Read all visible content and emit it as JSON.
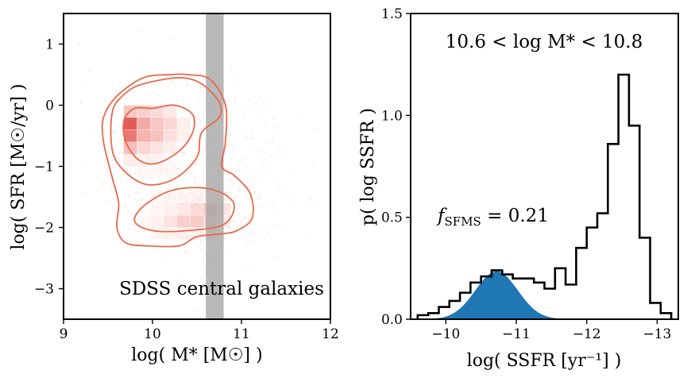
{
  "chart_data": [
    {
      "type": "heatmap",
      "xlabel": "log( M* [M☉] )",
      "ylabel": "log( SFR [M☉/yr] )",
      "xlim": [
        9,
        12
      ],
      "ylim": [
        -3.5,
        1.5
      ],
      "xticks": [
        9,
        10,
        11,
        12
      ],
      "xtick_labels": [
        "9",
        "10",
        "11",
        "12"
      ],
      "yticks": [
        1,
        0,
        -1,
        -2,
        -3
      ],
      "ytick_labels": [
        "1",
        "0",
        "−1",
        "−2",
        "−3"
      ],
      "annotation": "SDSS central galaxies",
      "highlight_band": {
        "x_range": [
          10.6,
          10.8
        ],
        "color": "#a0a0a0"
      },
      "bin_size": {
        "dx": 0.15,
        "dy": 0.2
      },
      "cells": [
        {
          "x": 9.75,
          "y": -0.1,
          "v": 0.4
        },
        {
          "x": 9.9,
          "y": -0.1,
          "v": 0.35
        },
        {
          "x": 10.05,
          "y": -0.1,
          "v": 0.28
        },
        {
          "x": 10.2,
          "y": -0.1,
          "v": 0.18
        },
        {
          "x": 9.75,
          "y": -0.3,
          "v": 0.85
        },
        {
          "x": 9.9,
          "y": -0.3,
          "v": 0.55
        },
        {
          "x": 10.05,
          "y": -0.3,
          "v": 0.4
        },
        {
          "x": 10.2,
          "y": -0.3,
          "v": 0.3
        },
        {
          "x": 10.35,
          "y": -0.3,
          "v": 0.12
        },
        {
          "x": 9.75,
          "y": -0.5,
          "v": 0.75
        },
        {
          "x": 9.9,
          "y": -0.5,
          "v": 0.5
        },
        {
          "x": 10.05,
          "y": -0.5,
          "v": 0.42
        },
        {
          "x": 10.2,
          "y": -0.5,
          "v": 0.25
        },
        {
          "x": 10.35,
          "y": -0.5,
          "v": 0.1
        },
        {
          "x": 9.75,
          "y": -0.7,
          "v": 0.45
        },
        {
          "x": 9.9,
          "y": -0.7,
          "v": 0.3
        },
        {
          "x": 10.05,
          "y": -0.7,
          "v": 0.22
        },
        {
          "x": 10.2,
          "y": -0.7,
          "v": 0.12
        },
        {
          "x": 9.75,
          "y": -0.9,
          "v": 0.15
        },
        {
          "x": 9.9,
          "y": -0.9,
          "v": 0.12
        },
        {
          "x": 10.05,
          "y": -0.9,
          "v": 0.08
        },
        {
          "x": 9.9,
          "y": -1.1,
          "v": 0.05
        },
        {
          "x": 10.05,
          "y": -1.1,
          "v": 0.05
        },
        {
          "x": 10.2,
          "y": -1.1,
          "v": 0.04
        },
        {
          "x": 10.05,
          "y": -1.5,
          "v": 0.04
        },
        {
          "x": 10.2,
          "y": -1.5,
          "v": 0.06
        },
        {
          "x": 10.35,
          "y": -1.5,
          "v": 0.08
        },
        {
          "x": 10.5,
          "y": -1.5,
          "v": 0.1
        },
        {
          "x": 10.65,
          "y": -1.5,
          "v": 0.1
        },
        {
          "x": 10.8,
          "y": -1.5,
          "v": 0.06
        },
        {
          "x": 10.05,
          "y": -1.7,
          "v": 0.06
        },
        {
          "x": 10.2,
          "y": -1.7,
          "v": 0.1
        },
        {
          "x": 10.35,
          "y": -1.7,
          "v": 0.18
        },
        {
          "x": 10.5,
          "y": -1.7,
          "v": 0.28
        },
        {
          "x": 10.65,
          "y": -1.7,
          "v": 0.4
        },
        {
          "x": 10.8,
          "y": -1.7,
          "v": 0.22
        },
        {
          "x": 9.9,
          "y": -1.9,
          "v": 0.05
        },
        {
          "x": 10.05,
          "y": -1.9,
          "v": 0.12
        },
        {
          "x": 10.2,
          "y": -1.9,
          "v": 0.22
        },
        {
          "x": 10.35,
          "y": -1.9,
          "v": 0.35
        },
        {
          "x": 10.5,
          "y": -1.9,
          "v": 0.38
        },
        {
          "x": 10.65,
          "y": -1.9,
          "v": 0.3
        },
        {
          "x": 10.8,
          "y": -1.9,
          "v": 0.15
        },
        {
          "x": 10.05,
          "y": -2.1,
          "v": 0.06
        },
        {
          "x": 10.2,
          "y": -2.1,
          "v": 0.1
        },
        {
          "x": 10.35,
          "y": -2.1,
          "v": 0.14
        },
        {
          "x": 10.5,
          "y": -2.1,
          "v": 0.12
        },
        {
          "x": 10.65,
          "y": -2.1,
          "v": 0.08
        }
      ],
      "contours": [
        [
          [
            10.0,
            -0.05
          ],
          [
            10.25,
            0.0
          ],
          [
            10.45,
            -0.15
          ],
          [
            10.45,
            -0.45
          ],
          [
            10.3,
            -0.75
          ],
          [
            10.05,
            -0.95
          ],
          [
            9.85,
            -0.9
          ],
          [
            9.7,
            -0.6
          ],
          [
            9.68,
            -0.25
          ],
          [
            9.8,
            -0.05
          ],
          [
            10.0,
            -0.05
          ]
        ],
        [
          [
            9.9,
            0.35
          ],
          [
            10.3,
            0.45
          ],
          [
            10.55,
            0.35
          ],
          [
            10.75,
            0.05
          ],
          [
            10.75,
            -0.2
          ],
          [
            10.55,
            -0.45
          ],
          [
            10.5,
            -0.85
          ],
          [
            10.25,
            -1.2
          ],
          [
            9.95,
            -1.3
          ],
          [
            9.7,
            -1.1
          ],
          [
            9.55,
            -0.75
          ],
          [
            9.55,
            -0.1
          ],
          [
            9.7,
            0.2
          ],
          [
            9.9,
            0.35
          ]
        ],
        [
          [
            10.2,
            -1.4
          ],
          [
            10.55,
            -1.35
          ],
          [
            10.8,
            -1.45
          ],
          [
            10.92,
            -1.65
          ],
          [
            10.8,
            -1.95
          ],
          [
            10.4,
            -2.05
          ],
          [
            10.0,
            -2.05
          ],
          [
            9.8,
            -1.9
          ],
          [
            9.9,
            -1.65
          ],
          [
            10.2,
            -1.4
          ]
        ],
        [
          [
            10.4,
            0.5
          ],
          [
            10.65,
            0.42
          ],
          [
            10.82,
            0.0
          ],
          [
            10.82,
            -0.6
          ],
          [
            10.78,
            -1.0
          ],
          [
            10.92,
            -1.15
          ],
          [
            11.1,
            -1.45
          ],
          [
            11.12,
            -1.85
          ],
          [
            10.95,
            -2.05
          ],
          [
            10.8,
            -2.1
          ],
          [
            10.5,
            -2.15
          ],
          [
            10.3,
            -2.3
          ],
          [
            9.95,
            -2.3
          ],
          [
            9.7,
            -2.25
          ],
          [
            9.6,
            -2.0
          ],
          [
            9.62,
            -1.6
          ],
          [
            9.55,
            -1.2
          ],
          [
            9.45,
            -0.6
          ],
          [
            9.45,
            -0.2
          ],
          [
            9.6,
            0.15
          ],
          [
            9.9,
            0.45
          ],
          [
            10.2,
            0.5
          ],
          [
            10.4,
            0.5
          ]
        ]
      ]
    },
    {
      "type": "line",
      "title": "10.6 < log M* < 10.8",
      "xlabel": "log( SSFR [yr⁻¹] )",
      "ylabel": "p( log SSFR )",
      "xlim": [
        -9.5,
        -13.3
      ],
      "ylim": [
        0,
        1.5
      ],
      "xticks": [
        -10,
        -11,
        -12,
        -13
      ],
      "xtick_labels": [
        "−10",
        "−11",
        "−12",
        "−13"
      ],
      "yticks": [
        0,
        0.5,
        1.0,
        1.5
      ],
      "ytick_labels": [
        "0.0",
        "0.5",
        "1.0",
        "1.5"
      ],
      "annotation": "f_SFMS = 0.21",
      "annotation_main": "f",
      "annotation_sub": "SFMS",
      "annotation_rest": " = 0.21",
      "histogram": {
        "bin_edges": [
          -9.6,
          -9.75,
          -9.9,
          -10.05,
          -10.2,
          -10.35,
          -10.5,
          -10.65,
          -10.8,
          -10.95,
          -11.1,
          -11.25,
          -11.4,
          -11.55,
          -11.7,
          -11.85,
          -12.0,
          -12.15,
          -12.3,
          -12.45,
          -12.6,
          -12.75,
          -12.9,
          -13.05,
          -13.2
        ],
        "values": [
          0.02,
          0.03,
          0.06,
          0.09,
          0.13,
          0.18,
          0.21,
          0.24,
          0.22,
          0.2,
          0.2,
          0.18,
          0.15,
          0.25,
          0.17,
          0.35,
          0.45,
          0.52,
          0.86,
          1.2,
          0.95,
          0.4,
          0.08,
          0.03
        ]
      },
      "sfms_gaussian": {
        "color": "#1f77b4",
        "mu": -10.72,
        "sigma": 0.3,
        "amplitude": 0.235
      }
    }
  ]
}
